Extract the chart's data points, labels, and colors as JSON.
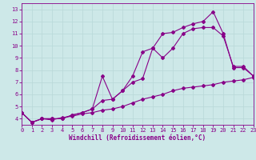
{
  "xlabel": "Windchill (Refroidissement éolien,°C)",
  "bg_color": "#cde8e8",
  "line_color": "#880088",
  "xlim": [
    0,
    23
  ],
  "ylim": [
    3.5,
    13.5
  ],
  "xticks": [
    0,
    1,
    2,
    3,
    4,
    5,
    6,
    7,
    8,
    9,
    10,
    11,
    12,
    13,
    14,
    15,
    16,
    17,
    18,
    19,
    20,
    21,
    22,
    23
  ],
  "yticks": [
    4,
    5,
    6,
    7,
    8,
    9,
    10,
    11,
    12,
    13
  ],
  "series1_x": [
    0,
    1,
    2,
    3,
    4,
    5,
    6,
    7,
    8,
    9,
    10,
    11,
    12,
    13,
    14,
    15,
    16,
    17,
    18,
    19,
    20,
    21,
    22,
    23
  ],
  "series1_y": [
    4.5,
    3.7,
    4.0,
    4.0,
    4.0,
    4.3,
    4.5,
    4.8,
    7.5,
    5.6,
    6.3,
    7.0,
    7.3,
    9.8,
    9.0,
    9.8,
    11.0,
    11.4,
    11.5,
    11.5,
    10.8,
    8.3,
    8.3,
    7.5
  ],
  "series2_x": [
    0,
    1,
    2,
    3,
    4,
    5,
    6,
    7,
    8,
    9,
    10,
    11,
    12,
    13,
    14,
    15,
    16,
    17,
    18,
    19,
    20,
    21,
    22,
    23
  ],
  "series2_y": [
    4.5,
    3.7,
    4.0,
    3.9,
    4.1,
    4.2,
    4.4,
    4.5,
    4.7,
    4.8,
    5.0,
    5.3,
    5.6,
    5.8,
    6.0,
    6.3,
    6.5,
    6.6,
    6.7,
    6.8,
    7.0,
    7.1,
    7.2,
    7.4
  ],
  "series3_x": [
    0,
    1,
    2,
    3,
    4,
    5,
    6,
    7,
    8,
    9,
    10,
    11,
    12,
    13,
    14,
    15,
    16,
    17,
    18,
    19,
    20,
    21,
    22,
    23
  ],
  "series3_y": [
    4.5,
    3.7,
    4.0,
    4.0,
    4.0,
    4.3,
    4.5,
    4.8,
    5.5,
    5.6,
    6.3,
    7.5,
    9.5,
    9.8,
    11.0,
    11.1,
    11.5,
    11.8,
    12.0,
    12.8,
    11.0,
    8.2,
    8.2,
    7.5
  ],
  "grid_color": "#b8d8d8",
  "marker": "D",
  "marker_size": 2,
  "linewidth": 0.8,
  "tick_fontsize": 5,
  "xlabel_fontsize": 5.5
}
